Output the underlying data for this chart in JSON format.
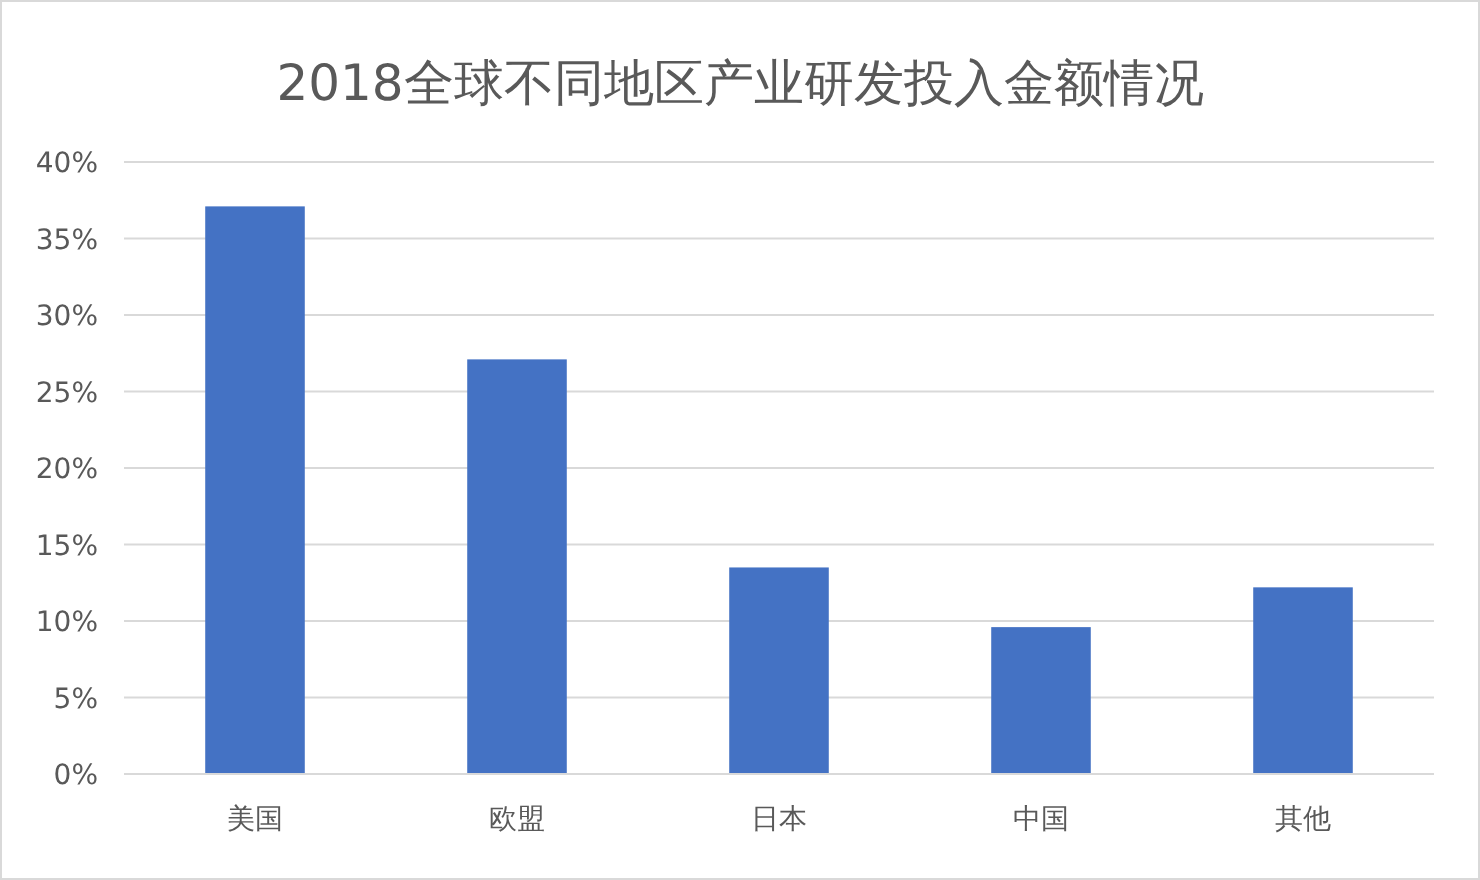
{
  "chart_data": {
    "type": "bar",
    "title": "2018全球不同地区产业研发投入金额情况",
    "categories": [
      "美国",
      "欧盟",
      "日本",
      "中国",
      "其他"
    ],
    "values": [
      37.1,
      27.1,
      13.5,
      9.6,
      12.2
    ],
    "color": "#4472c4",
    "ylim": [
      0,
      40
    ],
    "yticks": [
      {
        "value": 0,
        "label": "0%"
      },
      {
        "value": 5,
        "label": "5%"
      },
      {
        "value": 10,
        "label": "10%"
      },
      {
        "value": 15,
        "label": "15%"
      },
      {
        "value": 20,
        "label": "20%"
      },
      {
        "value": 25,
        "label": "25%"
      },
      {
        "value": 30,
        "label": "30%"
      },
      {
        "value": 35,
        "label": "35%"
      },
      {
        "value": 40,
        "label": "40%"
      }
    ],
    "grid": "y",
    "legend": false
  }
}
